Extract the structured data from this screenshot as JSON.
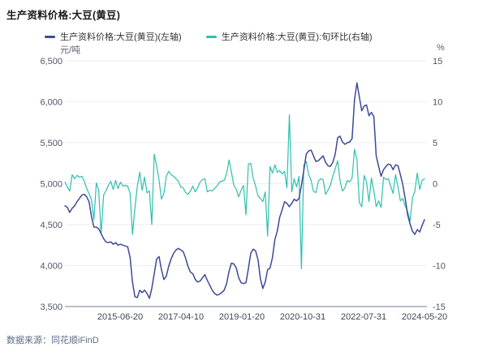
{
  "title": "生产资料价格:大豆(黄豆)",
  "source": "数据来源：同花顺iFinD",
  "chart_data": {
    "type": "line",
    "title": "生产资料价格:大豆(黄豆)",
    "legend_position": "top",
    "grid": true,
    "x_ticks": [
      "2015-06-20",
      "2017-04-10",
      "2019-01-20",
      "2020-10-31",
      "2022-07-31",
      "2024-05-20"
    ],
    "left_axis": {
      "unit": "元/吨",
      "min": 3500,
      "max": 6500,
      "step": 500,
      "ticks": [
        "6,500",
        "6,000",
        "5,500",
        "5,000",
        "4,500",
        "4,000",
        "3,500"
      ]
    },
    "right_axis": {
      "unit": "%",
      "min": -15,
      "max": 15,
      "step": 5,
      "ticks": [
        "15",
        "10",
        "5",
        "0",
        "-5",
        "-10",
        "-15"
      ]
    },
    "colors": {
      "price_line": "#3D4A96",
      "pct_line": "#2FBFAC",
      "grid": "#ECECF3",
      "axis_line": "#A3A9BC"
    },
    "series": [
      {
        "name": "生产资料价格:大豆(黄豆)(左轴)",
        "axis": "left",
        "color": "#3D4A96",
        "values": [
          4730,
          4710,
          4650,
          4700,
          4730,
          4780,
          4820,
          4860,
          4870,
          4840,
          4780,
          4600,
          4470,
          4470,
          4450,
          4390,
          4330,
          4290,
          4280,
          4290,
          4260,
          4280,
          4250,
          4260,
          4250,
          4240,
          4230,
          4100,
          3800,
          3620,
          3610,
          3700,
          3670,
          3700,
          3660,
          3600,
          3720,
          3900,
          4080,
          4110,
          3950,
          3830,
          3870,
          3990,
          4080,
          4150,
          4190,
          4210,
          4190,
          4170,
          4090,
          3990,
          3920,
          3900,
          3830,
          3800,
          3810,
          3850,
          3890,
          3820,
          3760,
          3700,
          3660,
          3640,
          3650,
          3670,
          3700,
          3780,
          3930,
          4030,
          4020,
          3970,
          3850,
          3790,
          3780,
          3790,
          3960,
          4150,
          4200,
          4180,
          4070,
          3840,
          3720,
          3800,
          3950,
          3970,
          4100,
          4320,
          4420,
          4590,
          4680,
          4780,
          4760,
          4720,
          4760,
          4810,
          4790,
          4820,
          4980,
          5160,
          5360,
          5400,
          5410,
          5340,
          5270,
          5280,
          5310,
          5340,
          5260,
          5220,
          5210,
          5260,
          5360,
          5560,
          5580,
          5510,
          5480,
          5500,
          5510,
          5550,
          6030,
          6230,
          6060,
          5890,
          5950,
          5960,
          5830,
          5870,
          5820,
          5340,
          5210,
          5090,
          5170,
          5210,
          5240,
          5230,
          5170,
          5230,
          5220,
          5110,
          4990,
          4820,
          4620,
          4510,
          4420,
          4380,
          4440,
          4410,
          4490,
          4560
        ]
      },
      {
        "name": "生产资料价格:大豆(黄豆):旬环比(右轴)",
        "axis": "right",
        "color": "#2FBFAC",
        "values": [
          0.2,
          -0.4,
          -0.9,
          1.1,
          0.6,
          1.0,
          0.8,
          0.9,
          0.3,
          -0.6,
          -1.2,
          -2.0,
          -4.4,
          0.1,
          -0.8,
          -6.2,
          -1.4,
          -0.9,
          -0.2,
          0.3,
          -0.7,
          0.4,
          -0.6,
          0.2,
          -0.3,
          -0.2,
          -0.3,
          -1.2,
          -6.2,
          -3.0,
          -0.3,
          1.4,
          -0.8,
          0.8,
          -1.1,
          -0.9,
          -5.0,
          3.6,
          2.2,
          0.4,
          -1.9,
          -1.2,
          0.9,
          1.5,
          1.1,
          0.9,
          0.6,
          0.3,
          -0.4,
          -0.5,
          -1.1,
          -1.3,
          -0.9,
          -0.3,
          -1.0,
          -0.5,
          0.2,
          0.5,
          0.6,
          -1.0,
          -0.8,
          -0.9,
          -0.6,
          -0.3,
          0.2,
          0.3,
          0.4,
          1.2,
          2.9,
          1.4,
          -0.2,
          -0.7,
          -1.6,
          -0.8,
          -0.2,
          -3.8,
          2.4,
          2.5,
          0.7,
          -0.3,
          -1.5,
          -1.8,
          -2.2,
          -1.0,
          -6.4,
          2.1,
          1.3,
          2.3,
          1.4,
          1.6,
          1.2,
          1.5,
          -0.5,
          8.4,
          -1.0,
          0.6,
          -0.4,
          0.9,
          -10.4,
          2.3,
          2.7,
          1.1,
          0.4,
          -0.9,
          -1.1,
          0.3,
          0.6,
          0.5,
          -1.3,
          -0.8,
          -0.2,
          0.9,
          1.8,
          2.8,
          0.4,
          -0.9,
          -0.5,
          0.4,
          0.2,
          0.7,
          4.2,
          2.9,
          -2.3,
          -2.8,
          1.0,
          0.2,
          -2.2,
          0.7,
          -0.9,
          -2.8,
          -2.1,
          -2.9,
          0.8,
          0.5,
          0.6,
          -0.3,
          -1.2,
          1.1,
          -0.4,
          -2.1,
          -1.8,
          -2.7,
          -3.4,
          -4.6,
          -1.8,
          -0.9,
          1.3,
          -0.7,
          0.4,
          0.6
        ]
      }
    ]
  }
}
